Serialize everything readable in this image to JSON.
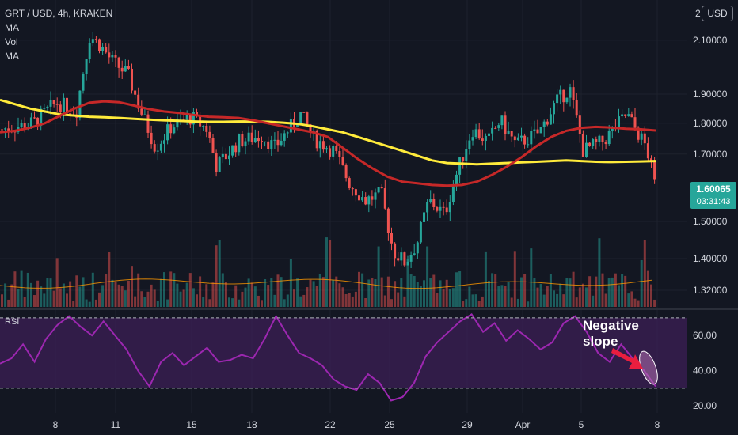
{
  "header": {
    "symbol_line": "GRT / USD, 4h, KRAKEN",
    "indicators": [
      "MA",
      "Vol",
      "MA"
    ],
    "currency": "USD",
    "corner_tick": "2"
  },
  "price_tag": {
    "price": "1.60065",
    "timer": "03:31:43"
  },
  "annotation": {
    "line1": "Negative",
    "line2": "slope"
  },
  "rsi": {
    "label": "RSI"
  },
  "colors": {
    "background": "#131722",
    "up": "#26a69a",
    "down": "#ef5350",
    "ma_fast": "#c62828",
    "ma_slow": "#ffeb3b",
    "vol_ma": "#ff9800",
    "rsi_line": "#9c27b0",
    "rsi_band": "#3c1f55",
    "arrow": "#e91e3f"
  },
  "chart_data": {
    "type": "candlestick",
    "title": "GRT / USD, 4h, KRAKEN",
    "x_tick_labels": [
      "8",
      "11",
      "15",
      "18",
      "22",
      "25",
      "29",
      "Apr",
      "5",
      "8"
    ],
    "price_axis": {
      "tick_labels": [
        "2.10000",
        "1.90000",
        "1.80000",
        "1.70000",
        "1.50000",
        "1.40000",
        "1.32000"
      ],
      "scale": "log",
      "range": [
        1.28,
        2.23
      ]
    },
    "rsi_axis": {
      "tick_labels": [
        "60.00",
        "40.00",
        "20.00"
      ],
      "range": [
        16,
        74
      ],
      "bands": [
        30,
        70
      ]
    },
    "last_price": 1.60065,
    "ma_slow_values": [
      1.88,
      1.865,
      1.85,
      1.84,
      1.83,
      1.826,
      1.822,
      1.82,
      1.818,
      1.815,
      1.812,
      1.81,
      1.808,
      1.806,
      1.805,
      1.805,
      1.806,
      1.806,
      1.805,
      1.802,
      1.798,
      1.79,
      1.78,
      1.77,
      1.755,
      1.74,
      1.725,
      1.71,
      1.695,
      1.68,
      1.672,
      1.67,
      1.668,
      1.67,
      1.672,
      1.674,
      1.676,
      1.678,
      1.68,
      1.678,
      1.676,
      1.675,
      1.676,
      1.677,
      1.678
    ],
    "ma_fast_values": [
      1.77,
      1.775,
      1.785,
      1.8,
      1.825,
      1.85,
      1.87,
      1.875,
      1.872,
      1.86,
      1.848,
      1.84,
      1.835,
      1.828,
      1.822,
      1.82,
      1.818,
      1.81,
      1.8,
      1.79,
      1.78,
      1.77,
      1.755,
      1.72,
      1.685,
      1.655,
      1.63,
      1.615,
      1.61,
      1.605,
      1.603,
      1.605,
      1.615,
      1.635,
      1.66,
      1.69,
      1.725,
      1.755,
      1.775,
      1.785,
      1.788,
      1.786,
      1.782,
      1.78,
      1.776
    ],
    "rsi_values": [
      44,
      47,
      55,
      45,
      58,
      66,
      71,
      65,
      60,
      68,
      60,
      52,
      40,
      31,
      45,
      50,
      43,
      48,
      53,
      45,
      46,
      49,
      47,
      58,
      71,
      60,
      50,
      47,
      43,
      35,
      31,
      29,
      38,
      33,
      23,
      25,
      33,
      48,
      56,
      62,
      68,
      72,
      62,
      67,
      57,
      63,
      58,
      52,
      56,
      67,
      71,
      62,
      50,
      45,
      55,
      47,
      40,
      31
    ],
    "series": [
      {
        "name": "MA",
        "role": "moving average (slow)",
        "color": "#ffeb3b"
      },
      {
        "name": "MA",
        "role": "moving average (fast)",
        "color": "#c62828"
      },
      {
        "name": "Vol",
        "role": "volume"
      },
      {
        "name": "RSI",
        "role": "relative strength index"
      }
    ],
    "grid": true
  }
}
